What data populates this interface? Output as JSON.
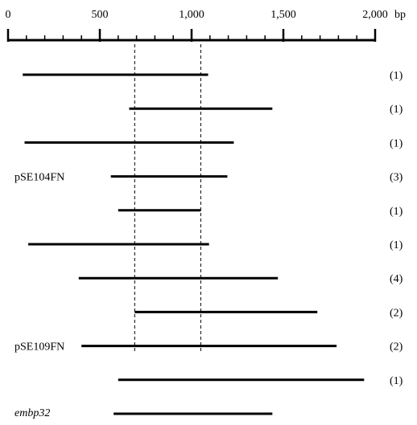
{
  "scale": {
    "unit": "bp",
    "min": 0,
    "max": 2000,
    "ticks": [
      {
        "value": 0,
        "label": "0"
      },
      {
        "value": 500,
        "label": "500"
      },
      {
        "value": 1000,
        "label": "1,000"
      },
      {
        "value": 1500,
        "label": "1,500"
      },
      {
        "value": 2000,
        "label": "2,000"
      }
    ],
    "minor_step": 100
  },
  "reference_lines": [
    690,
    1050
  ],
  "fragments": [
    {
      "start": 80,
      "end": 1090,
      "count": "(1)",
      "label": ""
    },
    {
      "start": 660,
      "end": 1440,
      "count": "(1)",
      "label": ""
    },
    {
      "start": 90,
      "end": 1230,
      "count": "(1)",
      "label": ""
    },
    {
      "start": 560,
      "end": 1195,
      "count": "(3)",
      "label": "pSE104FN"
    },
    {
      "start": 600,
      "end": 1050,
      "count": "(1)",
      "label": ""
    },
    {
      "start": 110,
      "end": 1095,
      "count": "(1)",
      "label": ""
    },
    {
      "start": 385,
      "end": 1470,
      "count": "(4)",
      "label": ""
    },
    {
      "start": 690,
      "end": 1685,
      "count": "(2)",
      "label": ""
    },
    {
      "start": 400,
      "end": 1790,
      "count": "(2)",
      "label": "pSE109FN"
    },
    {
      "start": 600,
      "end": 1940,
      "count": "(1)",
      "label": ""
    },
    {
      "start": 575,
      "end": 1440,
      "count": "",
      "label": "embp32"
    }
  ]
}
